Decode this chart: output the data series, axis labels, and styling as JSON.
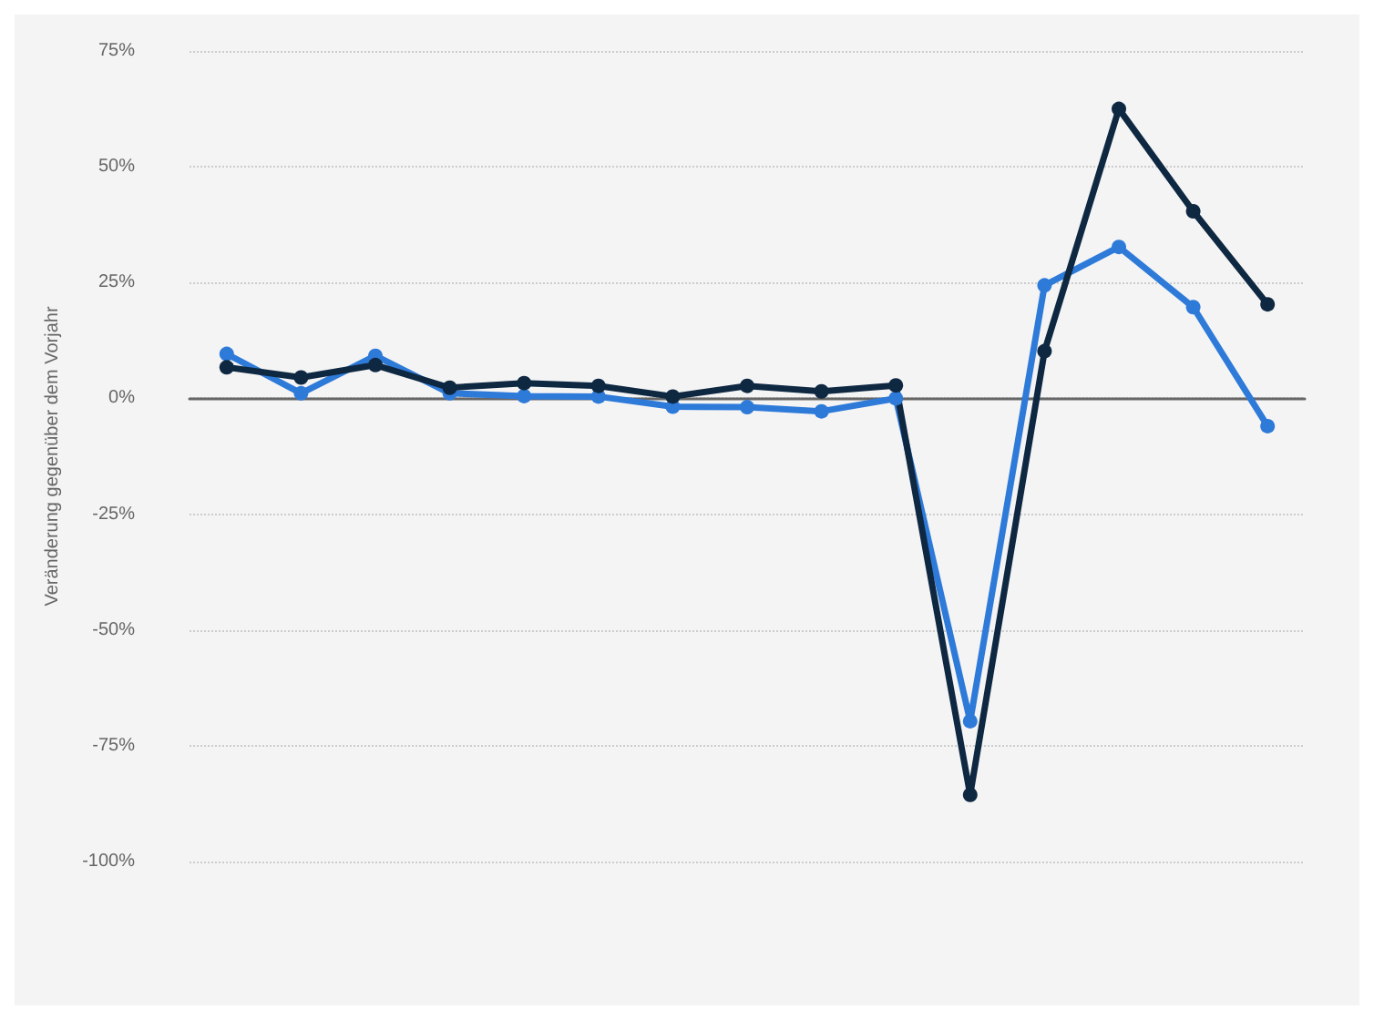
{
  "chart_data": {
    "type": "line",
    "ylabel": "Veränderung gegenüber dem Vorjahr",
    "categories": [
      null,
      null,
      null,
      null,
      null,
      null,
      null,
      null,
      null,
      null,
      null,
      null,
      null,
      null,
      null
    ],
    "series": [
      {
        "color": "#2e7ad9",
        "values": [
          9.6,
          1.1,
          9.2,
          1.1,
          0.5,
          0.4,
          -1.8,
          -1.9,
          -2.8,
          0,
          -69.7,
          24.4,
          32.7,
          19.7,
          -6
        ]
      },
      {
        "color": "#0f2842",
        "values": [
          6.7,
          4.5,
          7.2,
          2.3,
          3.3,
          2.7,
          0.4,
          2.7,
          1.5,
          2.8,
          -85.6,
          10.2,
          62.5,
          40.4,
          20.3
        ]
      }
    ],
    "ylim": [
      -100,
      75
    ],
    "yticks": [
      {
        "value": -100,
        "label": "-100%"
      },
      {
        "value": -75,
        "label": "-75%"
      },
      {
        "value": -50,
        "label": "-50%"
      },
      {
        "value": -25,
        "label": "-25%"
      },
      {
        "value": 0,
        "label": "0%"
      },
      {
        "value": 25,
        "label": "25%"
      },
      {
        "value": 50,
        "label": "50%"
      },
      {
        "value": 75,
        "label": "75%"
      }
    ],
    "grid": "y",
    "marker": "circle",
    "line_style": "solid"
  }
}
